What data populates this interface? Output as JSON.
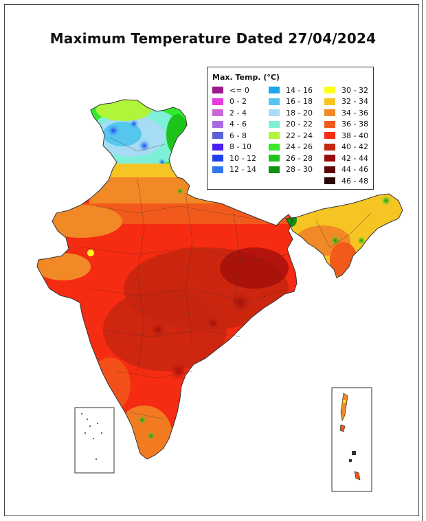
{
  "map": {
    "title": "Maximum Temperature Dated 27/04/2024",
    "legend_title": "Max. Temp. (°C)",
    "legend": [
      {
        "label": "<= 0",
        "color": "#9b1a8a"
      },
      {
        "label": "0 - 2",
        "color": "#e53be0"
      },
      {
        "label": "2 - 4",
        "color": "#c76ad8"
      },
      {
        "label": "4 - 6",
        "color": "#a968e0"
      },
      {
        "label": "6 - 8",
        "color": "#5b61d4"
      },
      {
        "label": "8 - 10",
        "color": "#4a1ff2"
      },
      {
        "label": "10 - 12",
        "color": "#1f3ff0"
      },
      {
        "label": "12 - 14",
        "color": "#2f77ef"
      },
      {
        "label": "14 - 16",
        "color": "#1aa7ec"
      },
      {
        "label": "16 - 18",
        "color": "#55c7ef"
      },
      {
        "label": "18 - 20",
        "color": "#a6dcf4"
      },
      {
        "label": "20 - 22",
        "color": "#7ff0d8"
      },
      {
        "label": "22 - 24",
        "color": "#b0f53a"
      },
      {
        "label": "24 - 26",
        "color": "#35ea2a"
      },
      {
        "label": "26 - 28",
        "color": "#1fc41a"
      },
      {
        "label": "28 - 30",
        "color": "#109110"
      },
      {
        "label": "30 - 32",
        "color": "#ffff1a"
      },
      {
        "label": "32 - 34",
        "color": "#f6c523"
      },
      {
        "label": "34 - 36",
        "color": "#f18a26"
      },
      {
        "label": "36 - 38",
        "color": "#f25a1c"
      },
      {
        "label": "38 - 40",
        "color": "#f52b12"
      },
      {
        "label": "40 - 42",
        "color": "#c5260f"
      },
      {
        "label": "42 - 44",
        "color": "#9a0b0b"
      },
      {
        "label": "44 - 46",
        "color": "#5a0707"
      },
      {
        "label": "46 - 48",
        "color": "#2a0303"
      }
    ]
  }
}
